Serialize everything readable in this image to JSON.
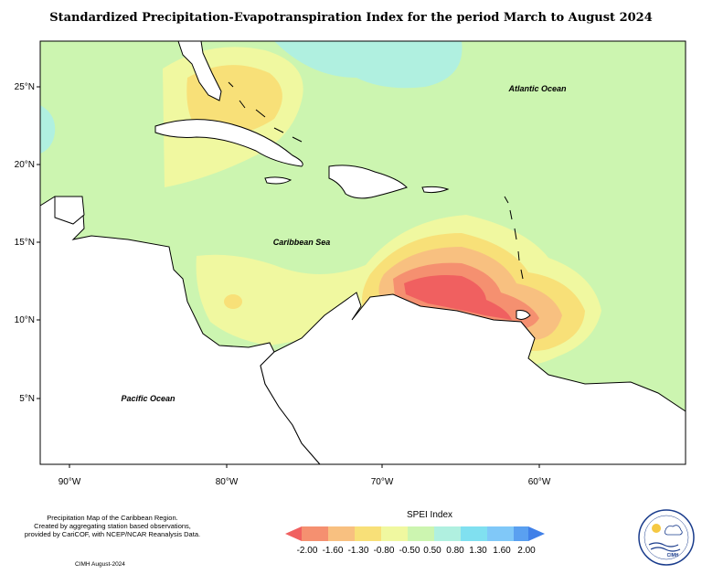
{
  "title": "Standardized Precipitation-Evapotranspiration Index for the period March to August 2024",
  "map": {
    "lat_ticks": [
      "25°N",
      "20°N",
      "15°N",
      "10°N",
      "5°N"
    ],
    "lon_ticks": [
      "90°W",
      "80°W",
      "70°W",
      "60°W"
    ],
    "ocean_labels": {
      "atlantic": "Atlantic Ocean",
      "caribbean": "Caribbean Sea",
      "pacific": "Pacific Ocean"
    },
    "background_class_color": "#ccf5b0"
  },
  "legend": {
    "title": "SPEI Index",
    "labels": [
      "-2.00",
      "-1.60",
      "-1.30",
      "-0.80",
      "-0.50",
      "0.50",
      "0.80",
      "1.30",
      "1.60",
      "2.00"
    ],
    "colors": [
      "#f06060",
      "#f59070",
      "#f8c080",
      "#f8e078",
      "#f0f8a0",
      "#ccf5b0",
      "#b0f0e0",
      "#80e0f0",
      "#80c8f8",
      "#5aa0f0",
      "#4080e8"
    ]
  },
  "credits": {
    "line1": "Precipitation Map of the Caribbean Region.",
    "line2": "Created by aggregating station based observations,",
    "line3": "provided by CariCOF, with NCEP/NCAR Reanalysis Data.",
    "footer": "CIMH August-2024"
  },
  "logo": {
    "text": "CIMH"
  }
}
